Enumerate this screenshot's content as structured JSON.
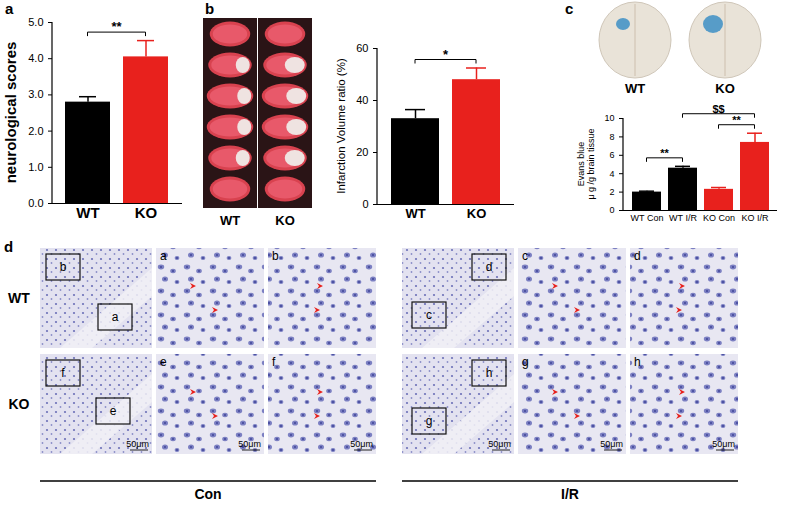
{
  "chart_data": [
    {
      "type": "bar",
      "panel": "a",
      "categories": [
        "WT",
        "KO"
      ],
      "values": [
        2.8,
        4.05
      ],
      "errors": [
        0.15,
        0.45
      ],
      "colors": [
        "#000000",
        "#e8211d"
      ],
      "y_label": "neurological scores",
      "ylim": [
        0,
        5
      ],
      "yticks": [
        0,
        1,
        2,
        3,
        4,
        5
      ],
      "annotations": [
        {
          "between": [
            "WT",
            "KO"
          ],
          "text": "**"
        }
      ]
    },
    {
      "type": "bar",
      "panel": "b",
      "categories": [
        "WT",
        "KO"
      ],
      "values": [
        33,
        48
      ],
      "errors": [
        3.5,
        4.5
      ],
      "colors": [
        "#000000",
        "#e8211d"
      ],
      "y_label": "Infarction Volume ratio (%)",
      "ylim": [
        0,
        60
      ],
      "yticks": [
        0,
        20,
        40,
        60
      ],
      "annotations": [
        {
          "between": [
            "WT",
            "KO"
          ],
          "text": "*"
        }
      ]
    },
    {
      "type": "bar",
      "panel": "c",
      "categories": [
        "WT Con",
        "WT I/R",
        "KO Con",
        "KO I/R"
      ],
      "values": [
        2.0,
        4.6,
        2.3,
        7.4
      ],
      "errors": [
        0.1,
        0.2,
        0.2,
        1.0
      ],
      "colors": [
        "#000000",
        "#000000",
        "#e8211d",
        "#e8211d"
      ],
      "y_label": [
        "Evans blue",
        "μ g /g brain tissue"
      ],
      "ylim": [
        0,
        10
      ],
      "yticks": [
        0,
        2,
        4,
        6,
        8,
        10
      ],
      "annotations": [
        {
          "between": [
            "WT Con",
            "WT I/R"
          ],
          "text": "**"
        },
        {
          "between": [
            "KO Con",
            "KO I/R"
          ],
          "text": "**"
        },
        {
          "between": [
            "WT I/R",
            "KO I/R"
          ],
          "text": "$$"
        }
      ]
    }
  ],
  "figure": {
    "panel_b_images": [
      "WT",
      "KO"
    ],
    "panel_c_images": [
      "WT",
      "KO"
    ],
    "panel_d": {
      "label": "d",
      "rows": [
        "WT",
        "KO"
      ],
      "groups": [
        "Con",
        "I/R"
      ],
      "panels": [
        [
          {
            "overview": [
              "b",
              "a"
            ],
            "insets": [
              "a",
              "b"
            ]
          },
          {
            "overview": [
              "d",
              "c"
            ],
            "insets": [
              "c",
              "d"
            ]
          }
        ],
        [
          {
            "overview": [
              "f",
              "e"
            ],
            "insets": [
              "e",
              "f"
            ]
          },
          {
            "overview": [
              "h",
              "g"
            ],
            "insets": [
              "g",
              "h"
            ]
          }
        ]
      ],
      "scale_bar": "50μm"
    }
  }
}
